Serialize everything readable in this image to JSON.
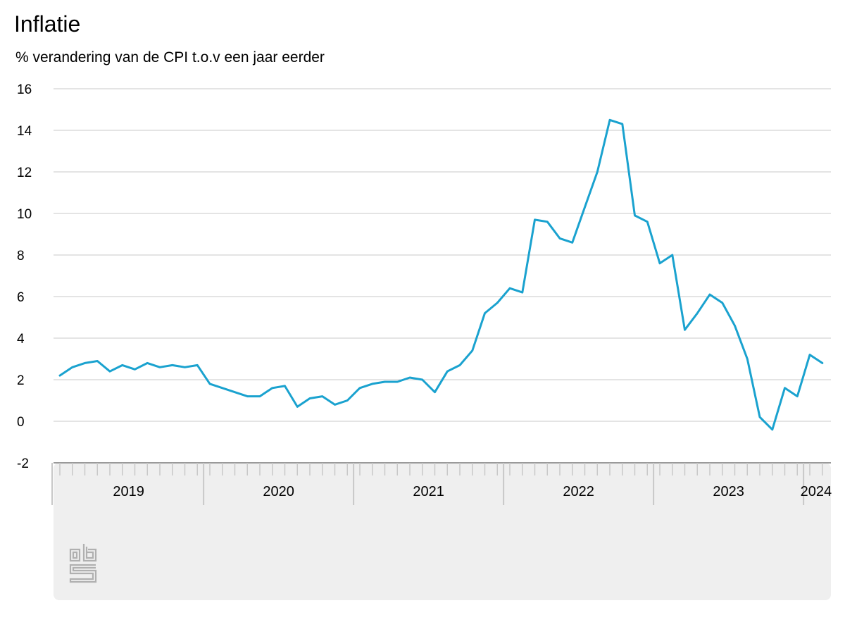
{
  "title": "Inflatie",
  "subtitle": "% verandering van de CPI t.o.v een jaar eerder",
  "logo": {
    "icon": "cbs-logo-icon"
  },
  "colors": {
    "line": "#1aa2cf",
    "grid": "#c8c8c8",
    "axis": "#9a9a9a",
    "footer_bg": "#efefef",
    "logo": "#b0b0b0"
  },
  "chart_data": {
    "type": "line",
    "title": "Inflatie",
    "subtitle": "% verandering van de CPI t.o.v een jaar eerder",
    "xlabel": "",
    "ylabel": "",
    "ylim": [
      -2,
      16
    ],
    "yticks": [
      "16",
      "14",
      "12",
      "10",
      "8",
      "6",
      "4",
      "2",
      "0",
      "-2"
    ],
    "grid": true,
    "year_labels": [
      "2019",
      "2020",
      "2021",
      "2022",
      "2023",
      "2024"
    ],
    "x": [
      "2019-01",
      "2019-02",
      "2019-03",
      "2019-04",
      "2019-05",
      "2019-06",
      "2019-07",
      "2019-08",
      "2019-09",
      "2019-10",
      "2019-11",
      "2019-12",
      "2020-01",
      "2020-02",
      "2020-03",
      "2020-04",
      "2020-05",
      "2020-06",
      "2020-07",
      "2020-08",
      "2020-09",
      "2020-10",
      "2020-11",
      "2020-12",
      "2021-01",
      "2021-02",
      "2021-03",
      "2021-04",
      "2021-05",
      "2021-06",
      "2021-07",
      "2021-08",
      "2021-09",
      "2021-10",
      "2021-11",
      "2021-12",
      "2022-01",
      "2022-02",
      "2022-03",
      "2022-04",
      "2022-05",
      "2022-06",
      "2022-07",
      "2022-08",
      "2022-09",
      "2022-10",
      "2022-11",
      "2022-12",
      "2023-01",
      "2023-02",
      "2023-03",
      "2023-04",
      "2023-05",
      "2023-06",
      "2023-07",
      "2023-08",
      "2023-09",
      "2023-10",
      "2023-11",
      "2023-12",
      "2024-01",
      "2024-02"
    ],
    "series": [
      {
        "values": [
          2.2,
          2.6,
          2.8,
          2.9,
          2.4,
          2.7,
          2.5,
          2.8,
          2.6,
          2.7,
          2.6,
          2.7,
          1.8,
          1.6,
          1.4,
          1.2,
          1.2,
          1.6,
          1.7,
          0.7,
          1.1,
          1.2,
          0.8,
          1.0,
          1.6,
          1.8,
          1.9,
          1.9,
          2.1,
          2.0,
          1.4,
          2.4,
          2.7,
          3.4,
          5.2,
          5.7,
          6.4,
          6.2,
          9.7,
          9.6,
          8.8,
          8.6,
          10.3,
          12.0,
          14.5,
          14.3,
          9.9,
          9.6,
          7.6,
          8.0,
          4.4,
          5.2,
          6.1,
          5.7,
          4.6,
          3.0,
          0.2,
          -0.4,
          1.6,
          1.2,
          3.2,
          2.8
        ]
      }
    ]
  }
}
